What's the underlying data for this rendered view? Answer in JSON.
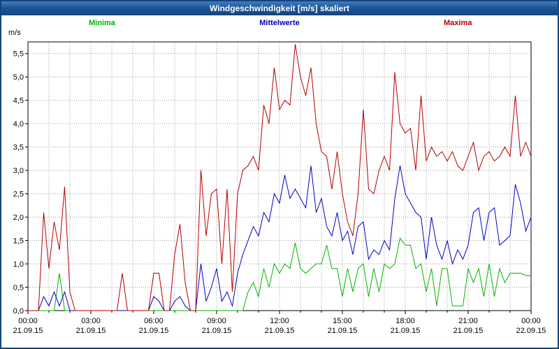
{
  "title_bar": {
    "title": "Windgeschwindigkeit [m/s] skaliert"
  },
  "legend": {
    "minima": "Minima",
    "mittelwerte": "Mittelwerte",
    "maxima": "Maxima"
  },
  "colors": {
    "minima": "#00b400",
    "mittelwerte": "#0000c8",
    "maxima": "#b40000",
    "frame": "#17437c",
    "grid": "#999999"
  },
  "axes": {
    "y_unit": "m/s",
    "y_ticks": [
      "0,0",
      "0,5",
      "1,0",
      "1,5",
      "2,0",
      "2,5",
      "3,0",
      "3,5",
      "4,0",
      "4,5",
      "5,0",
      "5,5"
    ],
    "x_ticks": [
      {
        "time": "00:00",
        "date": "21.09.15"
      },
      {
        "time": "03:00",
        "date": "21.09.15"
      },
      {
        "time": "06:00",
        "date": "21.09.15"
      },
      {
        "time": "09:00",
        "date": "21.09.15"
      },
      {
        "time": "12:00",
        "date": "21.09.15"
      },
      {
        "time": "15:00",
        "date": "21.09.15"
      },
      {
        "time": "18:00",
        "date": "21.09.15"
      },
      {
        "time": "21:00",
        "date": "21.09.15"
      },
      {
        "time": "00:00",
        "date": "22.09.15"
      }
    ]
  },
  "chart_data": {
    "type": "line",
    "title": "Windgeschwindigkeit [m/s] skaliert",
    "xlabel": "",
    "ylabel": "m/s",
    "ylim": [
      0,
      5.75
    ],
    "x_interval_minutes": 15,
    "x_range": [
      "21.09.15 00:00",
      "22.09.15 00:00"
    ],
    "grid": true,
    "legend_position": "top",
    "series": [
      {
        "name": "Minima",
        "color": "#00b400",
        "values": [
          0,
          0,
          0,
          0,
          0,
          0,
          0.8,
          0,
          0,
          0,
          0,
          0,
          0,
          0,
          0,
          0,
          0,
          0,
          0,
          0,
          0,
          0,
          0,
          0,
          0,
          0,
          0,
          0,
          0,
          0,
          0,
          0,
          0,
          0,
          0,
          0,
          0,
          0,
          0,
          0,
          0,
          0,
          0.4,
          0.6,
          0.3,
          0.9,
          0.5,
          1.0,
          0.8,
          1.0,
          0.9,
          1.45,
          0.9,
          0.8,
          0.9,
          1.0,
          1.0,
          1.4,
          0.9,
          0.9,
          0.3,
          0.9,
          0.4,
          0.9,
          1.0,
          0.3,
          0.9,
          0.4,
          1.0,
          0.9,
          1.0,
          1.55,
          1.4,
          1.4,
          0.9,
          1.0,
          0.4,
          0.9,
          0.1,
          0.9,
          0.9,
          0.1,
          0.1,
          0.1,
          0.9,
          0.6,
          0.9,
          0.3,
          1.0,
          0.3,
          0.9,
          0.6,
          0.8,
          0.8,
          0.8,
          0.75,
          0.75
        ]
      },
      {
        "name": "Mittelwerte",
        "color": "#0000c8",
        "values": [
          0,
          0,
          0,
          0.3,
          0.1,
          0.4,
          0.1,
          0.4,
          0,
          0,
          0,
          0,
          0,
          0,
          0,
          0,
          0,
          0,
          0,
          0,
          0,
          0,
          0,
          0,
          0.3,
          0.2,
          0,
          0,
          0.2,
          0.3,
          0.1,
          0,
          0,
          1.0,
          0.2,
          0.5,
          0.9,
          0.2,
          0.4,
          0.1,
          0.8,
          1.2,
          1.5,
          1.8,
          1.6,
          2.1,
          1.9,
          2.5,
          2.3,
          2.9,
          2.4,
          2.6,
          2.4,
          2.2,
          3.1,
          2.1,
          2.4,
          1.8,
          1.6,
          2.1,
          1.5,
          1.7,
          1.2,
          1.8,
          1.9,
          1.1,
          1.3,
          1.2,
          1.5,
          1.3,
          2.4,
          3.1,
          2.5,
          2.3,
          2.1,
          2.0,
          1.1,
          2.0,
          1.4,
          1.1,
          1.5,
          1.0,
          1.3,
          1.1,
          1.4,
          2.1,
          2.2,
          1.5,
          2.1,
          2.2,
          1.4,
          1.5,
          1.6,
          2.7,
          2.3,
          1.7,
          2.0
        ]
      },
      {
        "name": "Maxima",
        "color": "#b40000",
        "values": [
          0,
          0,
          0,
          2.1,
          0.9,
          1.9,
          1.3,
          2.65,
          0.4,
          0,
          0,
          0,
          0,
          0,
          0,
          0,
          0,
          0,
          0.8,
          0,
          0,
          0,
          0,
          0,
          0.8,
          0.8,
          0,
          0,
          1.2,
          1.85,
          0.6,
          0,
          0,
          3.0,
          1.6,
          2.5,
          2.6,
          1.0,
          2.6,
          0.4,
          2.5,
          3.0,
          3.1,
          3.3,
          3.0,
          4.4,
          4.0,
          5.2,
          4.3,
          4.5,
          4.4,
          5.7,
          5.0,
          4.6,
          5.2,
          4.0,
          3.4,
          3.3,
          2.6,
          3.4,
          2.5,
          1.9,
          1.6,
          2.5,
          4.3,
          2.6,
          2.5,
          3.0,
          3.3,
          3.0,
          5.1,
          4.0,
          3.8,
          3.9,
          3.0,
          4.6,
          3.2,
          3.5,
          3.3,
          3.4,
          3.2,
          3.4,
          3.1,
          3.0,
          3.3,
          3.6,
          3.0,
          3.3,
          3.4,
          3.2,
          3.3,
          3.5,
          3.3,
          4.6,
          3.3,
          3.6,
          3.3
        ]
      }
    ]
  }
}
